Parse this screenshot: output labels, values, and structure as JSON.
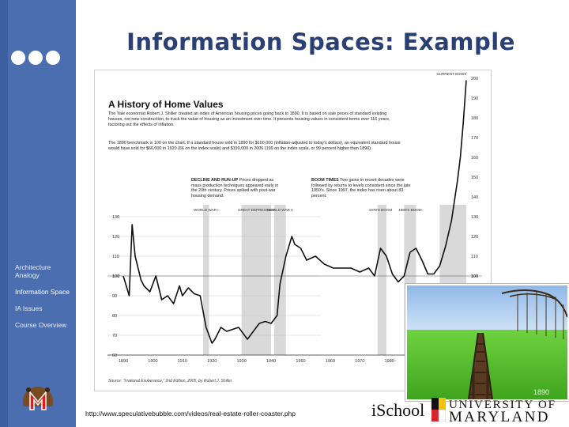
{
  "slide": {
    "title": "Information Spaces: Example",
    "nav": [
      "Architecture Analogy",
      "Information Space",
      "IA Issues",
      "Course Overview"
    ],
    "url": "http://www.speculativebubble.com/videos/real-estate-roller-coaster.php",
    "footer_brand": "iSchool",
    "university_line1": "UNIVERSITY OF",
    "university_line2": "MARYLAND"
  },
  "figure": {
    "heading": "A History of Home Values",
    "intro": "The Yale economist Robert J. Shiller created an index of American housing prices going back to 1890. It is based on sale prices of standard existing houses, not new construction, to track the value of housing as an investment over time. It presents housing values in consistent terms over 116 years, factoring out the effects of inflation.",
    "intro2": "The 1890 benchmark is 100 on the chart. If a standard house sold in 1890 for $100,000 (inflation-adjusted to today's dollars), an equivalent standard house would have sold for $66,000 in 1920 (66 on the index scale) and $199,000 in 2006 (199 on the index scale, or 99 percent higher than 1890).",
    "decline_title": "DECLINE AND RUN-UP",
    "decline_text": "Prices dropped as mass production techniques appeared early in the 20th century. Prices spiked with post-war housing demand.",
    "boom_title": "BOOM TIMES",
    "boom_text": "Two gains in recent decades were followed by returns to levels consistent since the late 1950's. Since 1997, the index has risen about 83 percent.",
    "source": "Source: \"Irrational Exuberance,\" 2nd Edition, 2005, by Robert J. Shiller",
    "period_labels": [
      "WORLD WAR I",
      "GREAT DEPRESSION",
      "WORLD WAR II",
      "1970'S BOOM",
      "1980'S BOOM",
      "CURRENT BOOM"
    ],
    "inset_caption": "1890"
  },
  "chart_data": {
    "type": "line",
    "title": "A History of Home Values",
    "xlabel": "",
    "ylabel": "",
    "xlim": [
      1890,
      2006
    ],
    "ylim": [
      60,
      200
    ],
    "x_ticks": [
      1890,
      1900,
      1910,
      1920,
      1930,
      1940,
      1950,
      1960,
      1970,
      1980
    ],
    "y_ticks_left": [
      60,
      70,
      80,
      90,
      100,
      110,
      120,
      130
    ],
    "y_ticks_right": [
      100,
      110,
      120,
      130,
      140,
      150,
      160,
      170,
      180,
      190,
      200
    ],
    "grid": true,
    "shaded_periods": [
      [
        1917,
        1919
      ],
      [
        1930,
        1940
      ],
      [
        1941,
        1945
      ],
      [
        1976,
        1979
      ],
      [
        1985,
        1989
      ],
      [
        1997,
        2006
      ]
    ],
    "series": [
      {
        "x": [
          1890,
          1892,
          1893,
          1894,
          1896,
          1897,
          1899,
          1901,
          1903,
          1905,
          1907,
          1909,
          1910,
          1912,
          1914,
          1916,
          1918,
          1920,
          1921,
          1923,
          1925,
          1927,
          1929,
          1931,
          1932,
          1934,
          1936,
          1938,
          1940,
          1942,
          1943,
          1945,
          1947,
          1948,
          1950,
          1952,
          1955,
          1958,
          1961,
          1964,
          1967,
          1970,
          1973,
          1975,
          1977,
          1979,
          1981,
          1983,
          1985,
          1987,
          1989,
          1991,
          1993,
          1995,
          1997,
          1999,
          2001,
          2003,
          2004,
          2005,
          2006
        ],
        "y": [
          100,
          90,
          126,
          110,
          98,
          95,
          92,
          100,
          88,
          90,
          86,
          95,
          90,
          94,
          91,
          90,
          74,
          66,
          68,
          74,
          72,
          73,
          74,
          70,
          68,
          72,
          76,
          77,
          76,
          80,
          96,
          110,
          120,
          116,
          114,
          108,
          110,
          106,
          104,
          104,
          104,
          102,
          104,
          100,
          114,
          110,
          101,
          97,
          100,
          112,
          114,
          108,
          101,
          101,
          105,
          115,
          128,
          148,
          160,
          178,
          199
        ]
      }
    ]
  }
}
